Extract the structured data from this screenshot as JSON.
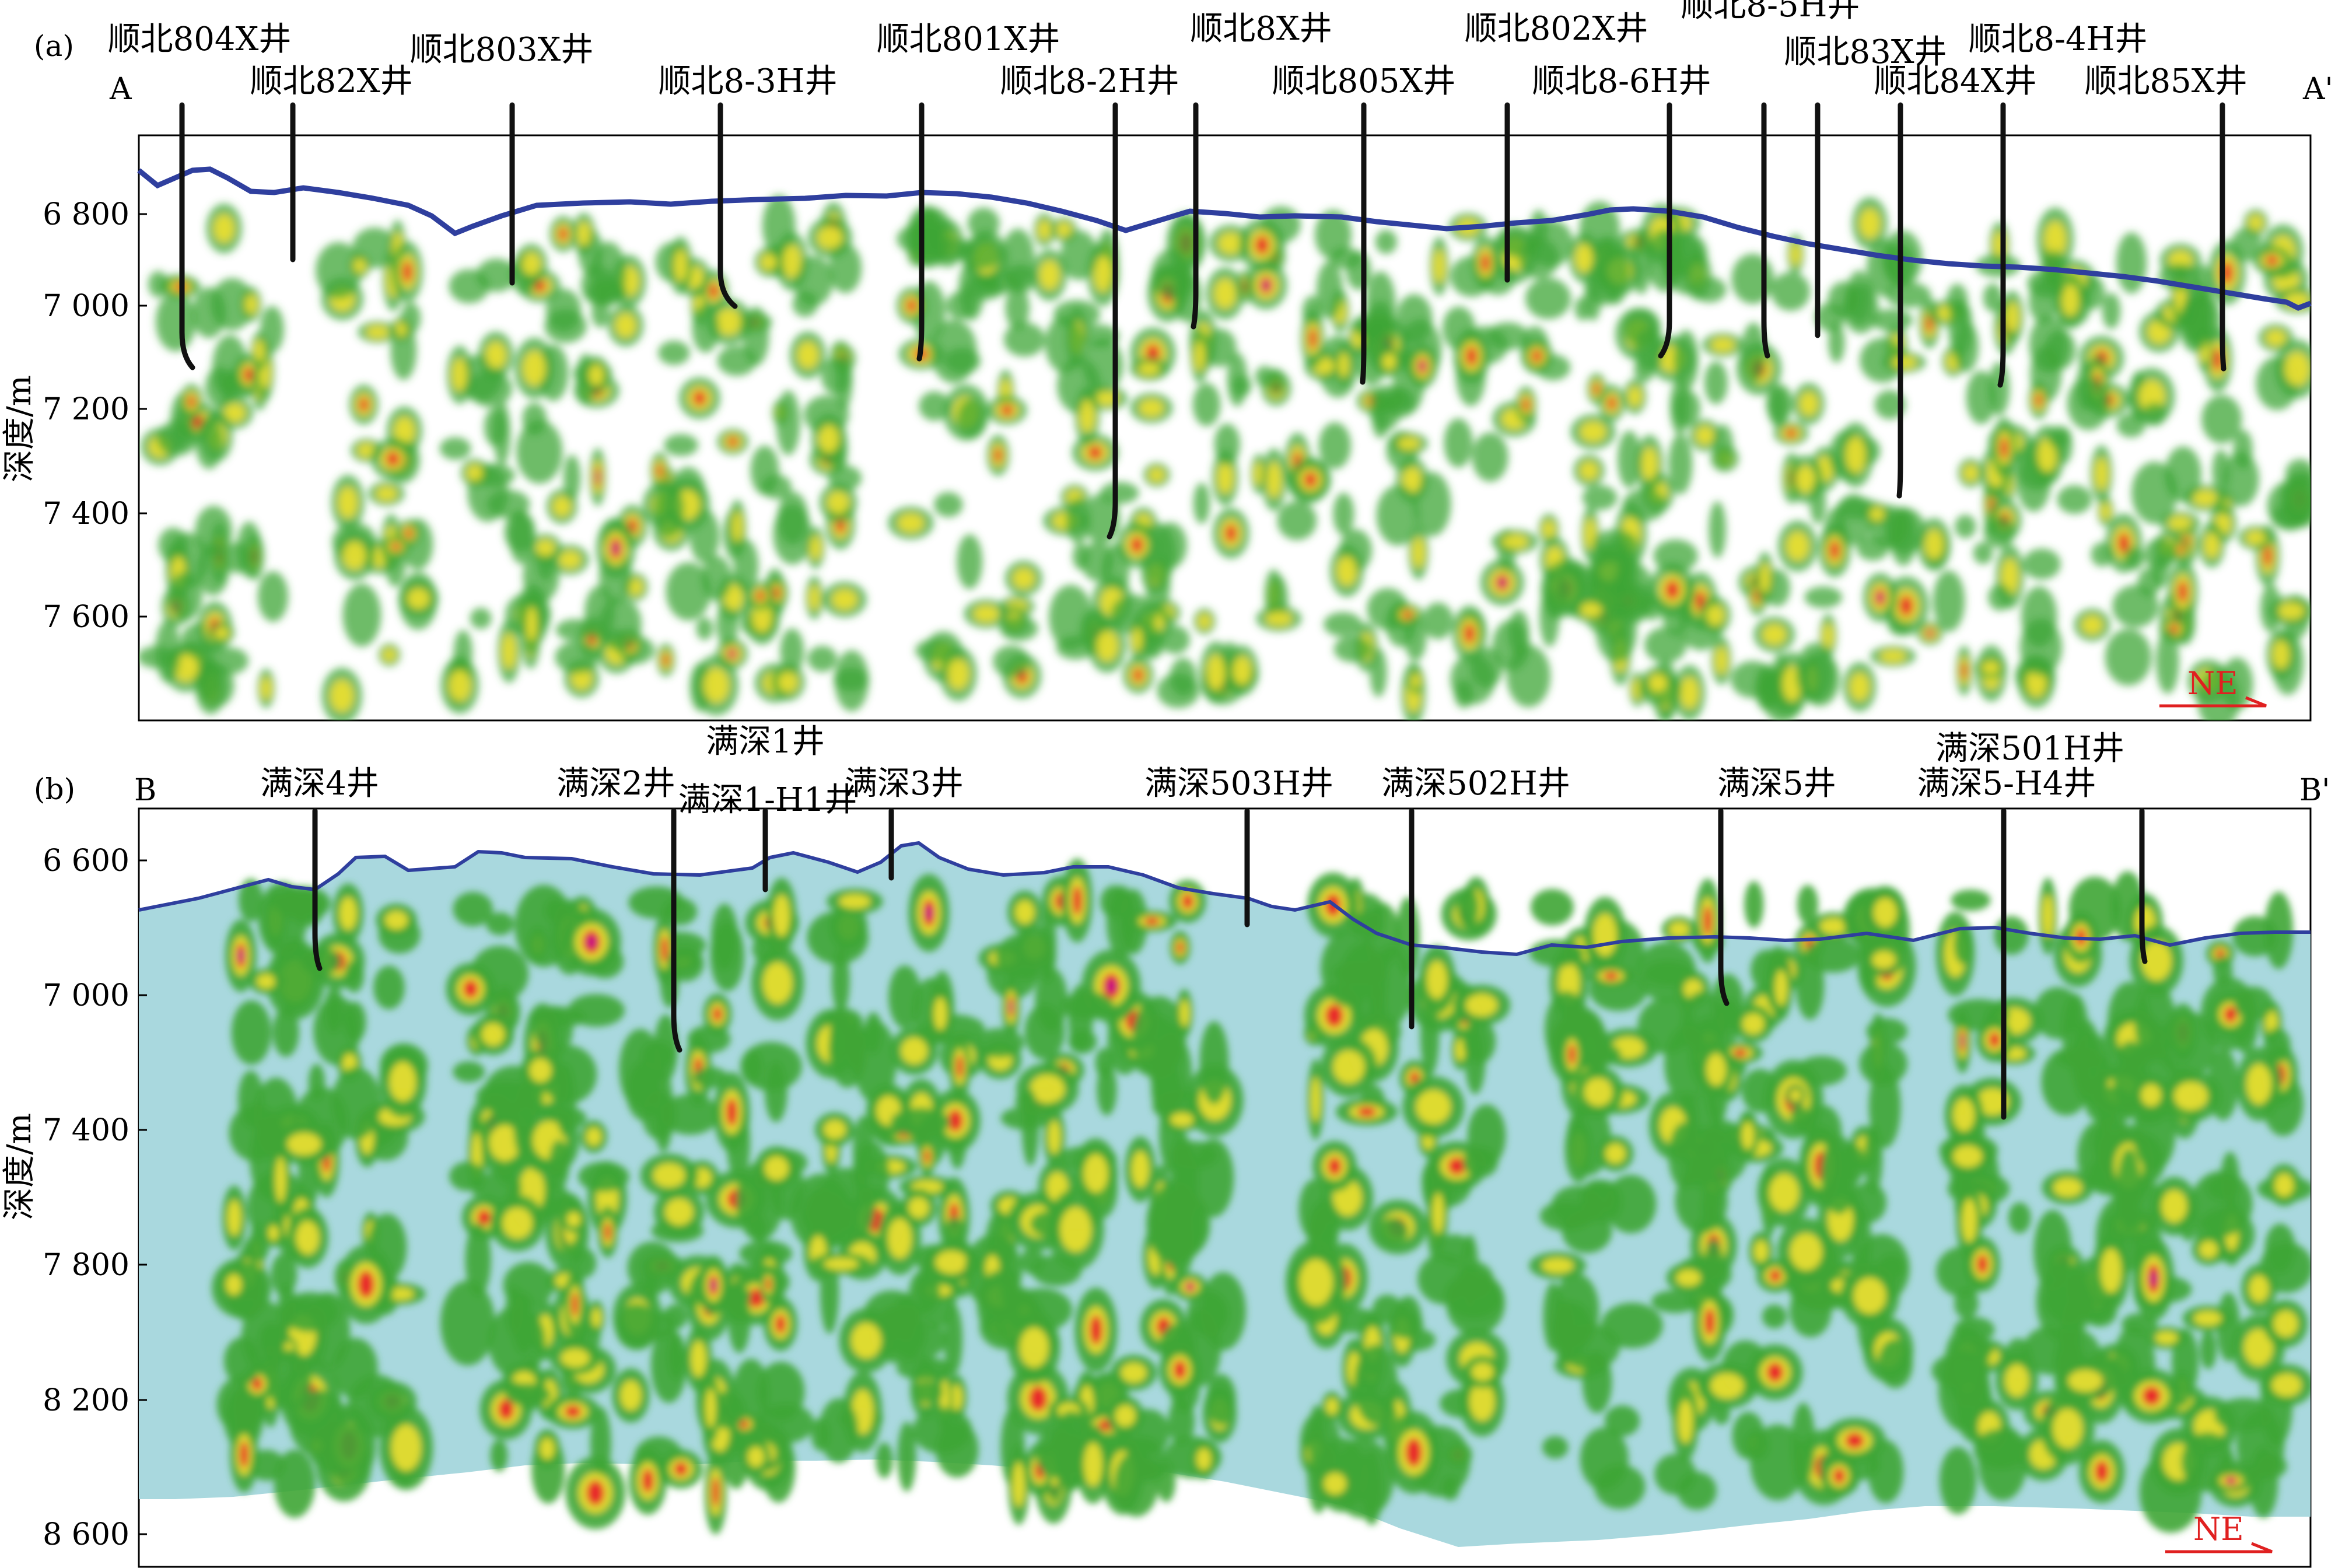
{
  "panels": [
    {
      "id": "a",
      "panel_label": "(a)",
      "start_label": "A",
      "end_label": "A'",
      "y_axis_title": "深度/m",
      "y_ticks": [
        "6 800",
        "7 000",
        "7 200",
        "7 400",
        "7 600"
      ],
      "direction": "NE",
      "wells": [
        "顺北804X井",
        "顺北82X井",
        "顺北803X井",
        "顺北8-3H井",
        "顺北801X井",
        "顺北8-2H井",
        "顺北8X井",
        "顺北805X井",
        "顺北802X井",
        "顺北8-6H井",
        "顺北8-5H井",
        "顺北83X井",
        "顺北84X井",
        "顺北8-4H井",
        "顺北85X井"
      ],
      "bottom_label": "满深1井",
      "colors": {
        "background": "#ffffff",
        "surface_line": "#2f3f9e",
        "well": "#111111"
      }
    },
    {
      "id": "b",
      "panel_label": "(b)",
      "start_label": "B",
      "end_label": "B'",
      "y_axis_title": "深度/m",
      "y_ticks": [
        "6 600",
        "7 000",
        "7 400",
        "7 800",
        "8 200",
        "8 600"
      ],
      "direction": "NE",
      "wells": [
        "满深4井",
        "满深2井",
        "满深1-H1井",
        "满深3井",
        "满深503H井",
        "满深502H井",
        "满深5井",
        "满深5-H4井",
        "满深501H井"
      ],
      "colors": {
        "background": "#a9d8de",
        "surface_line": "#2f3f9e",
        "well": "#111111"
      }
    }
  ],
  "colors": {
    "green": "#3fa535",
    "yellow": "#f0e030",
    "red": "#e8202a",
    "magenta": "#c0108a",
    "ne_arrow": "#e02020"
  }
}
